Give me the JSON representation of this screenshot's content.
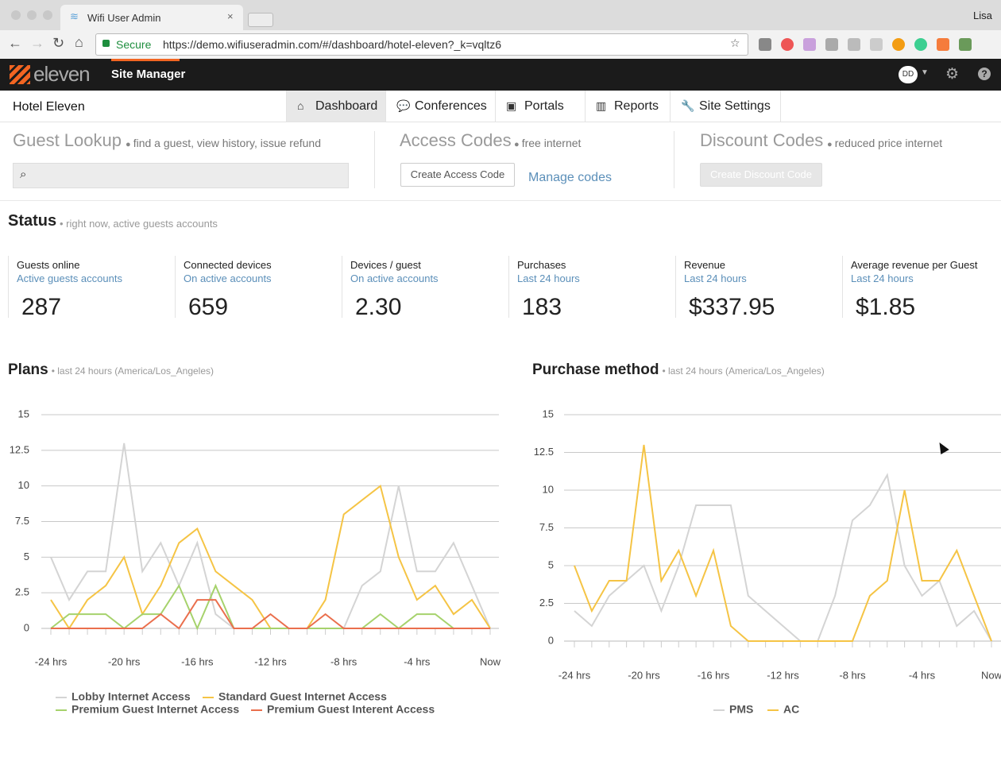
{
  "browser": {
    "tab_title": "Wifi User Admin",
    "secure": "Secure",
    "url": "https://demo.wifiuseradmin.com/#/dashboard/hotel-eleven?_k=vqltz6",
    "user": "Lisa"
  },
  "nav": {
    "logo": "eleven",
    "site_manager": "Site Manager",
    "avatar": "DD"
  },
  "subnav": {
    "hotel": "Hotel Eleven",
    "tabs": [
      "Dashboard",
      "Conferences",
      "Portals",
      "Reports",
      "Site Settings"
    ]
  },
  "lookup": {
    "guest": {
      "title": "Guest Lookup",
      "hint": "find a guest, view history, issue refund"
    },
    "access": {
      "title": "Access Codes",
      "hint": "free internet",
      "button": "Create Access Code",
      "link": "Manage codes"
    },
    "discount": {
      "title": "Discount Codes",
      "hint": "reduced price internet",
      "button": "Create Discount Code"
    }
  },
  "status": {
    "title": "Status",
    "hint": "• right now, active guests accounts",
    "cards": [
      {
        "label": "Guests online",
        "sub": "Active guests accounts",
        "value": "287"
      },
      {
        "label": "Connected devices",
        "sub": "On active accounts",
        "value": "659"
      },
      {
        "label": "Devices / guest",
        "sub": "On active accounts",
        "value": "2.30"
      },
      {
        "label": "Purchases",
        "sub": "Last 24 hours",
        "value": "183"
      },
      {
        "label": "Revenue",
        "sub": "Last 24 hours",
        "value": "$337.95"
      },
      {
        "label": "Average revenue per Guest",
        "sub": "Last 24 hours",
        "value": "$1.85"
      }
    ]
  },
  "chart_data": [
    {
      "type": "line",
      "title": "Plans",
      "subtitle": "• last 24 hours (America/Los_Angeles)",
      "categories": [
        "-24 hrs",
        null,
        null,
        null,
        "-20 hrs",
        null,
        null,
        null,
        "-16 hrs",
        null,
        null,
        null,
        "-12 hrs",
        null,
        null,
        null,
        "-8 hrs",
        null,
        null,
        null,
        "-4 hrs",
        null,
        null,
        null,
        "Now"
      ],
      "ylim": [
        0,
        15
      ],
      "yticks": [
        0,
        2.5,
        5,
        7.5,
        10,
        12.5,
        15
      ],
      "grid": true,
      "series": [
        {
          "name": "Lobby Internet Access",
          "color": "#d4d4d4",
          "values": [
            5,
            2,
            4,
            4,
            13,
            4,
            6,
            3,
            6,
            1,
            0,
            0,
            0,
            0,
            0,
            0,
            0,
            3,
            4,
            10,
            4,
            4,
            6,
            3,
            0
          ]
        },
        {
          "name": "Standard Guest Internet Access",
          "color": "#f5c445",
          "values": [
            2,
            0,
            2,
            3,
            5,
            1,
            3,
            6,
            7,
            4,
            3,
            2,
            0,
            0,
            0,
            2,
            8,
            9,
            10,
            5,
            2,
            3,
            1,
            2,
            0
          ]
        },
        {
          "name": "Premium Guest Internet Access",
          "color": "#a6d26c",
          "values": [
            0,
            1,
            1,
            1,
            0,
            1,
            1,
            3,
            0,
            3,
            0,
            0,
            0,
            0,
            0,
            0,
            0,
            0,
            1,
            0,
            1,
            1,
            0,
            0,
            0
          ]
        },
        {
          "name": "Premium Guest Interent Access",
          "color": "#ea6f4d",
          "values": [
            0,
            0,
            0,
            0,
            0,
            0,
            1,
            0,
            2,
            2,
            0,
            0,
            1,
            0,
            0,
            1,
            0,
            0,
            0,
            0,
            0,
            0,
            0,
            0,
            0
          ]
        }
      ]
    },
    {
      "type": "line",
      "title": "Purchase method",
      "subtitle": "• last 24 hours (America/Los_Angeles)",
      "categories": [
        "-24 hrs",
        null,
        null,
        null,
        "-20 hrs",
        null,
        null,
        null,
        "-16 hrs",
        null,
        null,
        null,
        "-12 hrs",
        null,
        null,
        null,
        "-8 hrs",
        null,
        null,
        null,
        "-4 hrs",
        null,
        null,
        null,
        "Now"
      ],
      "ylim": [
        0,
        15
      ],
      "yticks": [
        0,
        2.5,
        5,
        7.5,
        10,
        12.5,
        15
      ],
      "grid": true,
      "series": [
        {
          "name": "PMS",
          "color": "#d4d4d4",
          "values": [
            2,
            1,
            3,
            4,
            5,
            2,
            5,
            9,
            9,
            9,
            3,
            2,
            1,
            0,
            0,
            3,
            8,
            9,
            11,
            5,
            3,
            4,
            1,
            2,
            0
          ]
        },
        {
          "name": "AC",
          "color": "#f5c445",
          "values": [
            5,
            2,
            4,
            4,
            13,
            4,
            6,
            3,
            6,
            1,
            0,
            0,
            0,
            0,
            0,
            0,
            0,
            3,
            4,
            10,
            4,
            4,
            6,
            3,
            0
          ]
        }
      ]
    }
  ]
}
